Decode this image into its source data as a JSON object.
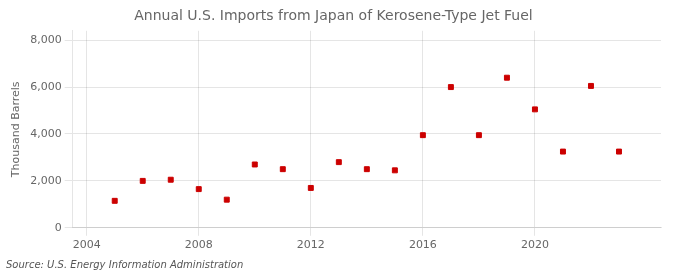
{
  "chart_data": {
    "type": "scatter",
    "title": "Annual U.S. Imports from Japan of Kerosene-Type Jet Fuel",
    "y_label": "Thousand Barrels",
    "annotations": [
      "Source: U.S. Energy Information Administration"
    ],
    "x": [
      2005,
      2006,
      2007,
      2008,
      2009,
      2010,
      2011,
      2012,
      2013,
      2014,
      2015,
      2016,
      2017,
      2018,
      2019,
      2020,
      2021,
      2022,
      2023
    ],
    "values": [
      1150,
      2000,
      2050,
      1650,
      1200,
      2700,
      2500,
      1700,
      2800,
      2500,
      2450,
      3950,
      6000,
      3950,
      6400,
      5050,
      3250,
      6050,
      3250
    ],
    "color": "#cc0000",
    "marker": "square",
    "xlim": [
      2003.5,
      2024.5
    ],
    "xticks": [
      2004,
      2008,
      2012,
      2016,
      2020
    ],
    "ylim": [
      0,
      8400
    ],
    "yticks": [
      0,
      {
        "value": 2000,
        "label": "2,000"
      },
      {
        "value": 4000,
        "label": "4,000"
      },
      {
        "value": 6000,
        "label": "6,000"
      },
      {
        "value": 8000,
        "label": "8,000"
      }
    ],
    "grid": true
  }
}
